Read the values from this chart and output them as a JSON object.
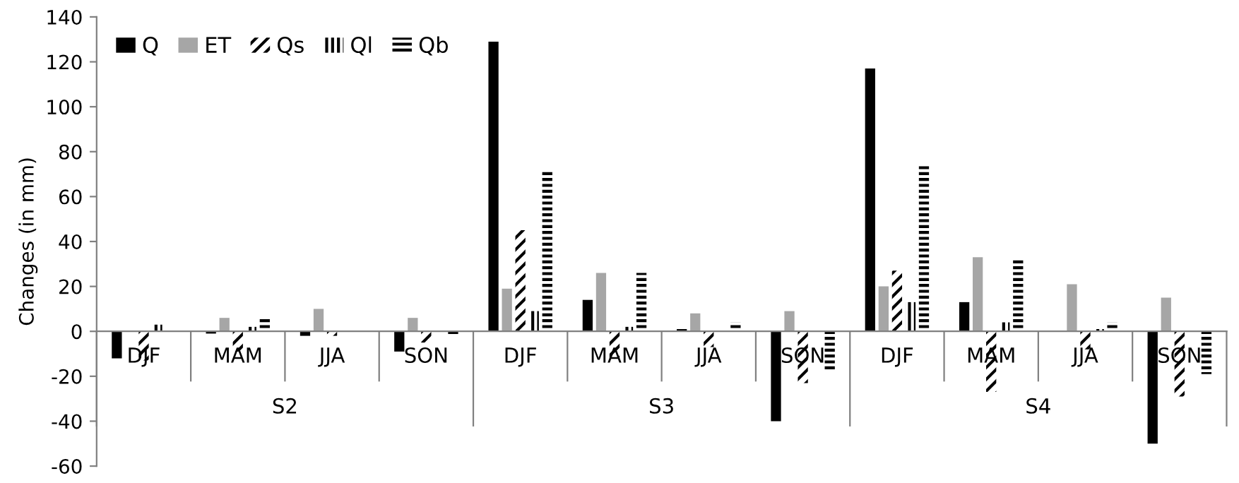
{
  "chart_data": {
    "type": "bar",
    "ylabel": "Changes (in mm)",
    "categories": [
      "DJF",
      "MAM",
      "JJA",
      "SON",
      "DJF",
      "MAM",
      "JJA",
      "SON",
      "DJF",
      "MAM",
      "JJA",
      "SON"
    ],
    "annotations": [
      "S2",
      "S3",
      "S4"
    ],
    "series": [
      {
        "name": "Q",
        "color": "#000000",
        "values": [
          -12,
          -1,
          -2,
          -9,
          129,
          14,
          1,
          -40,
          117,
          13,
          null,
          -50
        ]
      },
      {
        "name": "ET",
        "color": "#a6a6a6",
        "values": [
          null,
          6,
          10,
          6,
          19,
          26,
          8,
          9,
          20,
          33,
          21,
          15
        ]
      },
      {
        "name": "Qs",
        "color": "#000000",
        "values": [
          -13,
          -9,
          -2,
          -5,
          45,
          -12,
          -7,
          -23,
          27,
          -27,
          -8,
          -29
        ]
      },
      {
        "name": "Ql",
        "color": "#000000",
        "values": [
          3,
          2,
          0.3,
          0.3,
          9,
          2,
          null,
          0.3,
          13,
          4,
          1,
          null
        ]
      },
      {
        "name": "Qb",
        "color": "#000000",
        "values": [
          0.5,
          6,
          0.3,
          -2,
          72,
          26,
          4,
          -17,
          74,
          32,
          4,
          -19
        ]
      }
    ],
    "ylim": [
      -60,
      140
    ],
    "yticks": [
      -60,
      -40,
      -20,
      0,
      20,
      40,
      60,
      80,
      100,
      120,
      140
    ],
    "grid": false,
    "legend": "top left"
  }
}
